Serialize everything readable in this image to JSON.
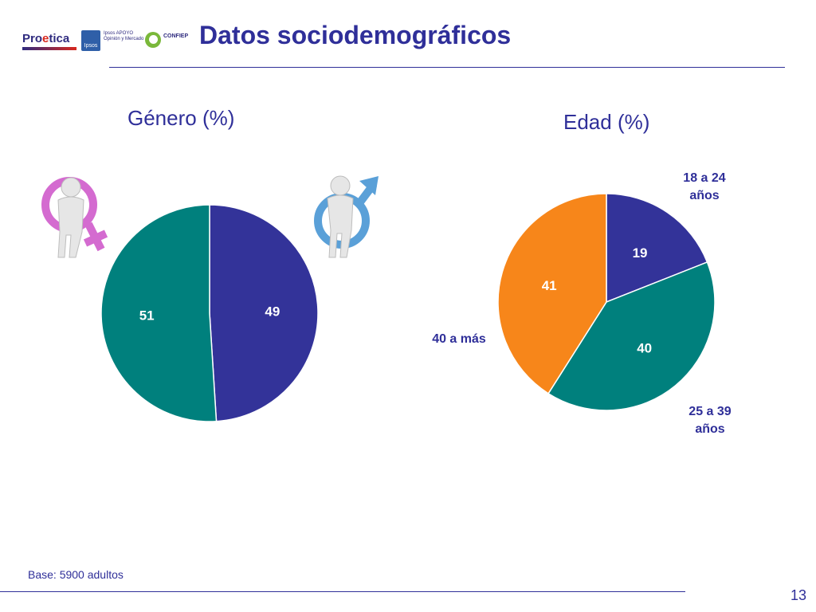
{
  "header": {
    "title": "Datos sociodemográficos",
    "logos": {
      "proetica_prefix": "Pro",
      "proetica_o": "e",
      "proetica_suffix": "tica",
      "ipsos_mark": "Ipsos",
      "ipsos_text_1": "Ipsos APOYO",
      "ipsos_text_2": "Opinión y Mercado",
      "confiep": "CONFIEP"
    }
  },
  "footer": {
    "base_note": "Base: 5900 adultos",
    "page_number": "13"
  },
  "colors": {
    "navy": "#333399",
    "teal": "#00807d",
    "orange": "#f7861a",
    "text_blue": "#2f2f99",
    "female_pink": "#d46bd0",
    "male_blue": "#5aa0d8"
  },
  "icons": {
    "female": "female-symbol-figure-icon",
    "male": "male-symbol-figure-icon"
  },
  "chart_data": [
    {
      "type": "pie",
      "title": "Género (%)",
      "series": [
        {
          "name": "",
          "values": [
            49,
            51
          ]
        }
      ],
      "labels": [
        "49",
        "51"
      ],
      "slice_colors": [
        "#333399",
        "#00807d"
      ],
      "start": "12 o'clock",
      "direction": "clockwise"
    },
    {
      "type": "pie",
      "title": "Edad (%)",
      "categories": [
        "18 a 24 años",
        "25 a 39 años",
        "40 a más"
      ],
      "category_lines": [
        [
          "18 a 24",
          "años"
        ],
        [
          "25 a 39",
          "años"
        ],
        [
          "40 a más"
        ]
      ],
      "series": [
        {
          "name": "",
          "values": [
            19,
            40,
            41
          ]
        }
      ],
      "labels": [
        "19",
        "40",
        "41"
      ],
      "slice_colors": [
        "#333399",
        "#00807d",
        "#f7861a"
      ],
      "start": "12 o'clock",
      "direction": "clockwise"
    }
  ]
}
